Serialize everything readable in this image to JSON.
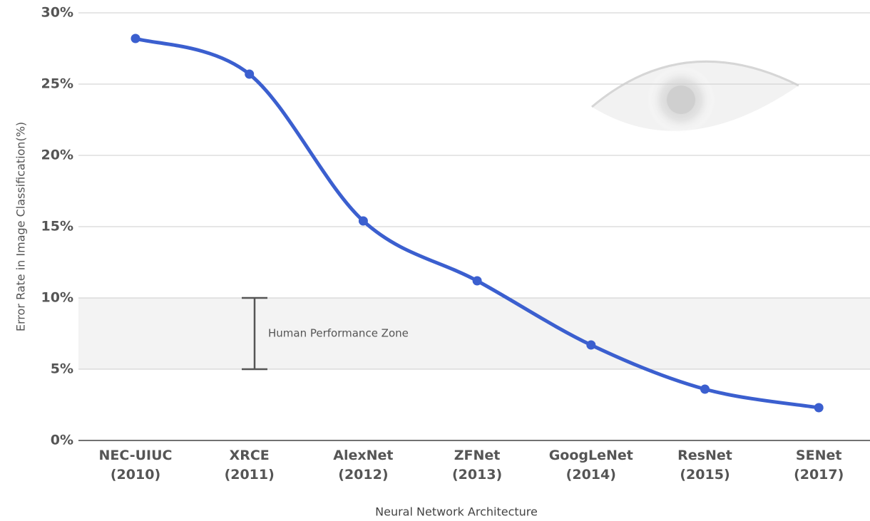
{
  "chart_data": {
    "type": "line",
    "x_label": "Neural Network Architecture",
    "y_label": "Error Rate in Image Classification(%)",
    "categories": [
      "NEC-UIUC\n(2010)",
      "XRCE\n(2011)",
      "AlexNet\n(2012)",
      "ZFNet\n(2013)",
      "GoogLeNet\n(2014)",
      "ResNet\n(2015)",
      "SENet\n(2017)"
    ],
    "values": [
      28.2,
      25.7,
      15.4,
      11.2,
      6.7,
      3.6,
      2.3
    ],
    "color": "#3b5fcf",
    "ylim": [
      0,
      30
    ],
    "yticks": [
      {
        "value": 0,
        "label": "0%"
      },
      {
        "value": 5,
        "label": "5%"
      },
      {
        "value": 10,
        "label": "10%"
      },
      {
        "value": 15,
        "label": "15%"
      },
      {
        "value": 20,
        "label": "20%"
      },
      {
        "value": 25,
        "label": "25%"
      },
      {
        "value": 30,
        "label": "30%"
      }
    ],
    "grid": true,
    "zone": {
      "label": "Human Performance Zone",
      "range": [
        5,
        10
      ]
    }
  }
}
